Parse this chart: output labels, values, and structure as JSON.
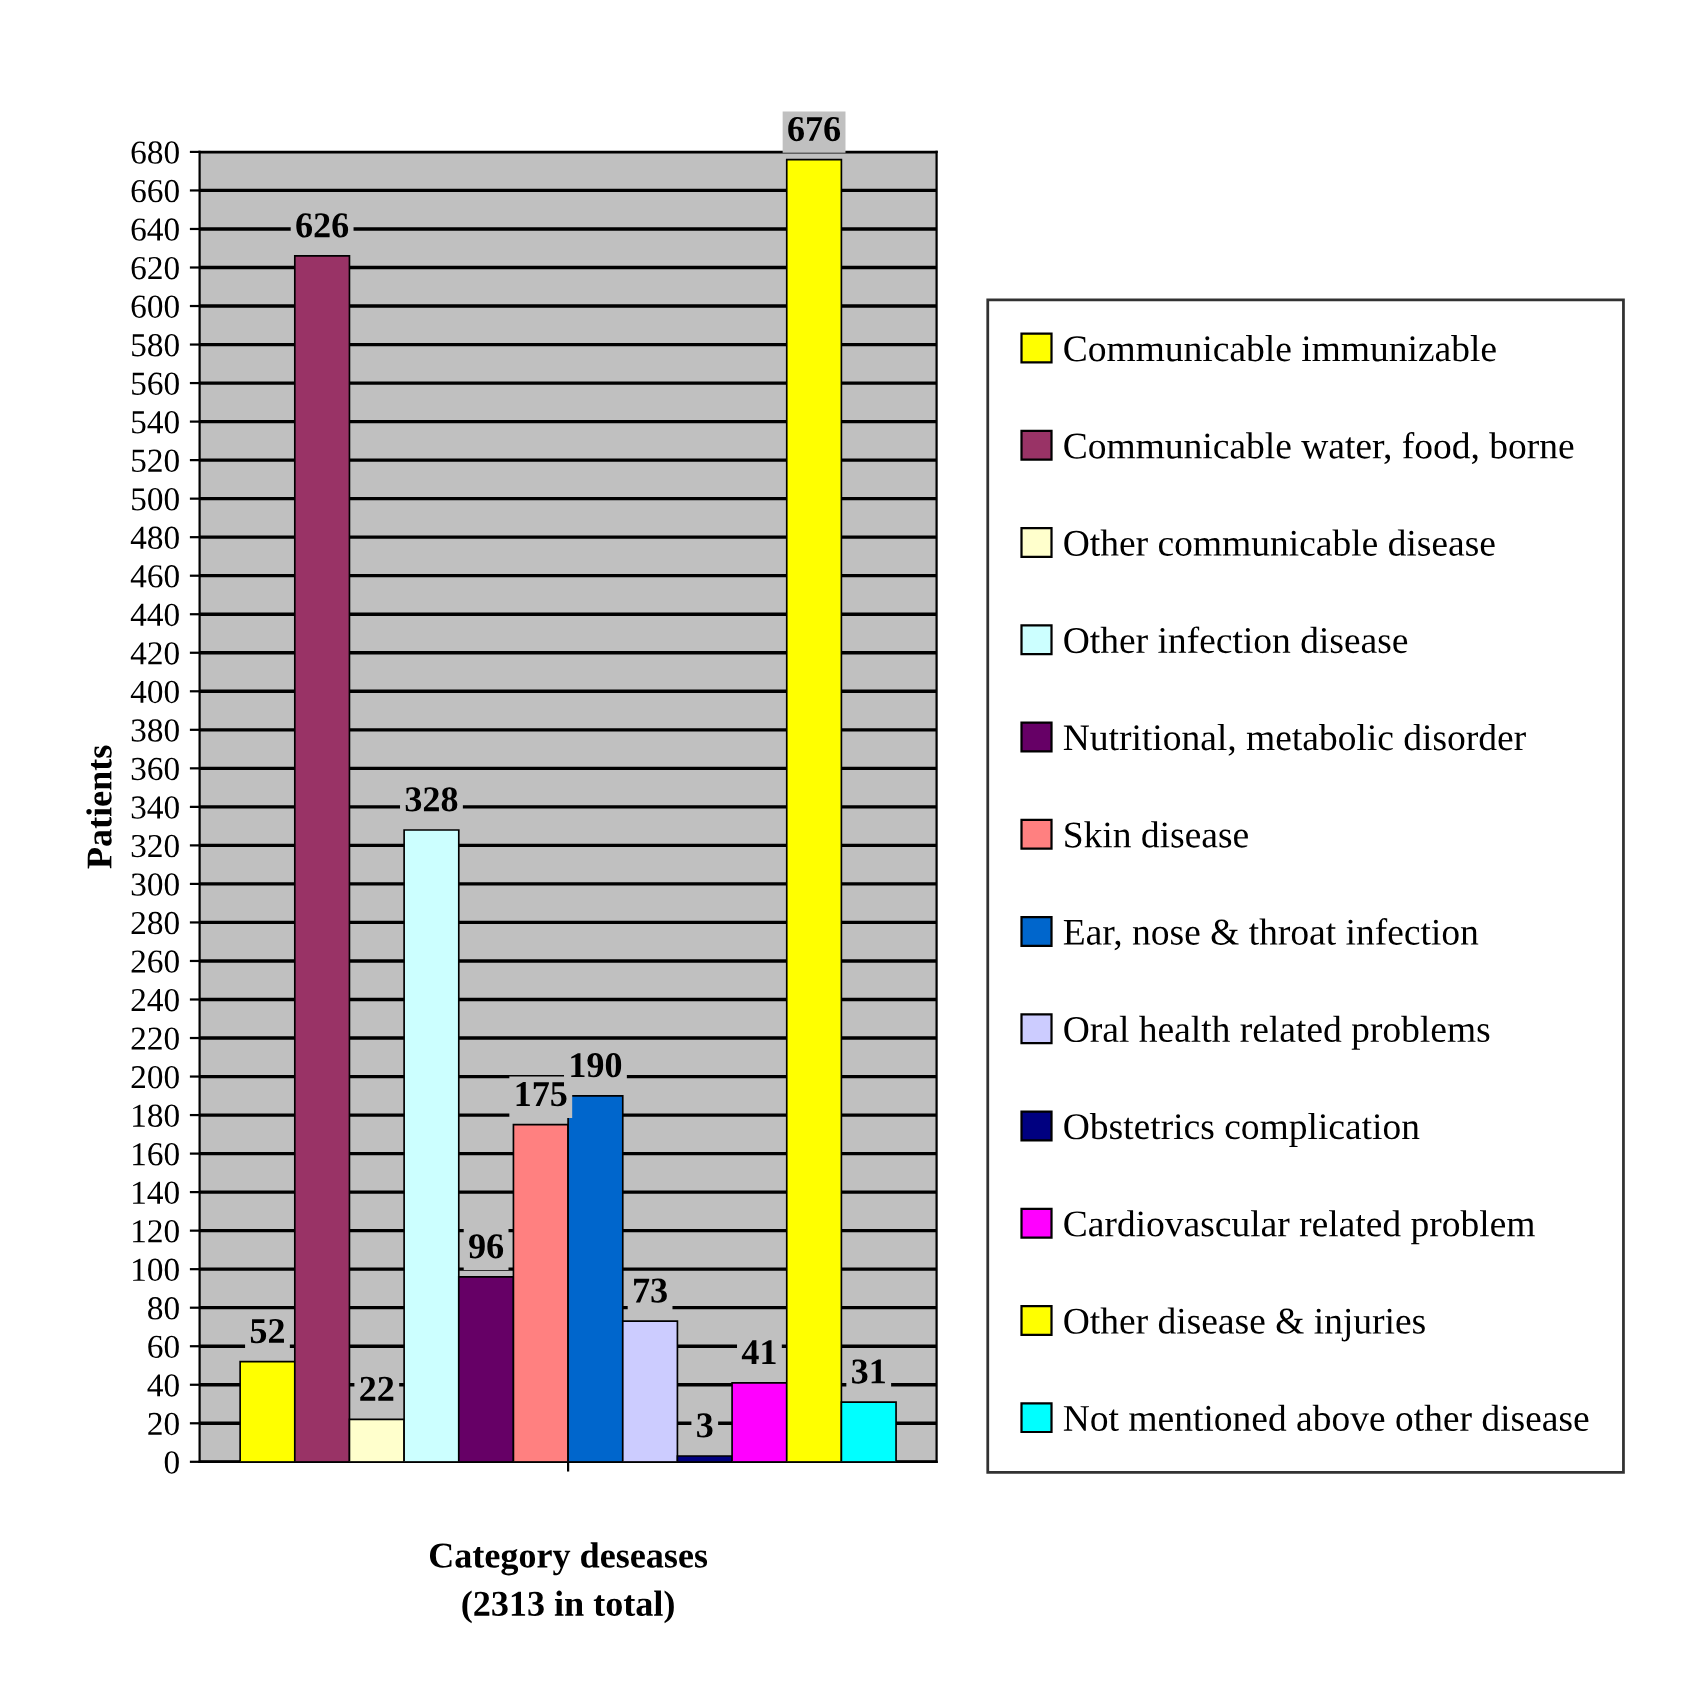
{
  "chart_data": {
    "type": "bar",
    "categories": [
      null
    ],
    "xlabel": "Category deseases",
    "ylabel": "Patients",
    "annotations": [
      "(2313 in total)"
    ],
    "ylim": [
      0,
      680
    ],
    "yticks": [
      0,
      20,
      40,
      60,
      80,
      100,
      120,
      140,
      160,
      180,
      200,
      220,
      240,
      260,
      280,
      300,
      320,
      340,
      360,
      380,
      400,
      420,
      440,
      460,
      480,
      500,
      520,
      540,
      560,
      580,
      600,
      620,
      640,
      660,
      680
    ],
    "grid": "y",
    "legend": "right",
    "data_labels": true,
    "series": [
      {
        "name": "Communicable immunizable",
        "color": "#ffff00",
        "values": [
          52
        ]
      },
      {
        "name": "Communicable water, food, borne",
        "color": "#993366",
        "values": [
          626
        ]
      },
      {
        "name": "Other communicable disease",
        "color": "#ffffcc",
        "values": [
          22
        ]
      },
      {
        "name": "Other infection disease",
        "color": "#ccffff",
        "values": [
          328
        ]
      },
      {
        "name": "Nutritional, metabolic disorder",
        "color": "#660066",
        "values": [
          96
        ]
      },
      {
        "name": "Skin disease",
        "color": "#ff8080",
        "values": [
          175
        ]
      },
      {
        "name": "Ear, nose & throat infection",
        "color": "#0066cc",
        "values": [
          190
        ]
      },
      {
        "name": "Oral health related problems",
        "color": "#ccccff",
        "values": [
          73
        ]
      },
      {
        "name": "Obstetrics complication",
        "color": "#000080",
        "values": [
          3
        ]
      },
      {
        "name": "Cardiovascular related problem",
        "color": "#ff00ff",
        "values": [
          41
        ]
      },
      {
        "name": "Other disease & injuries",
        "color": "#ffff00",
        "values": [
          676
        ]
      },
      {
        "name": "Not mentioned above other disease",
        "color": "#00ffff",
        "values": [
          31
        ]
      }
    ]
  }
}
